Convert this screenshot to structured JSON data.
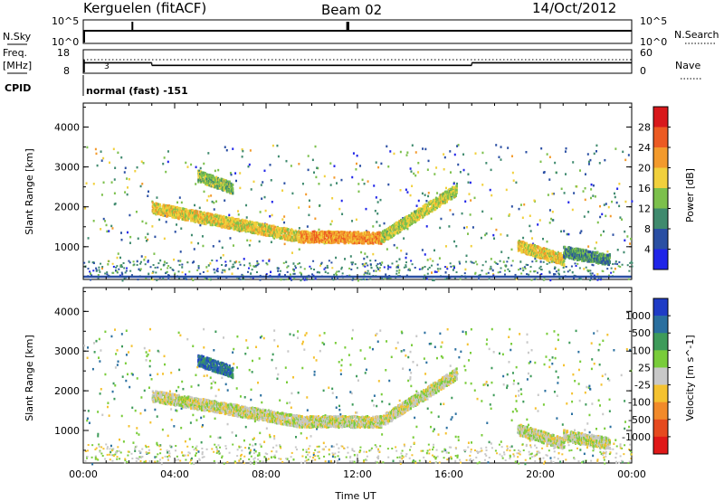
{
  "header": {
    "station": "Kerguelen (fitACF)",
    "beam": "Beam 02",
    "date": "14/Oct/2012"
  },
  "strips": {
    "nsky_label": "N.Sky",
    "nsearch_label": "N.Search",
    "nsky_ticks": [
      "10^5",
      "10^0"
    ],
    "nsearch_ticks": [
      "10^5",
      "10^0"
    ],
    "freq_label_1": "Freq.",
    "freq_label_2": "[MHz]",
    "freq_ticks": [
      "18",
      "8"
    ],
    "nave_label": "Nave",
    "nave_ticks": [
      "60",
      "0"
    ],
    "nave_marker": "3",
    "cpid_label": "CPID",
    "cpid_value": "normal (fast) -151",
    "nsky_spikes_hours": [
      2.15,
      11.55,
      11.6
    ],
    "freq_segments": [
      {
        "start": 0.0,
        "end": 3.0,
        "value": 12.5
      },
      {
        "start": 3.0,
        "end": 17.0,
        "value": 11.0
      },
      {
        "start": 17.0,
        "end": 24.0,
        "value": 12.5
      }
    ]
  },
  "chart_data": [
    {
      "type": "heatmap",
      "name": "power-panel",
      "ylabel": "Slant Range [km]",
      "xlabel": "",
      "x_ticks": [
        "00:00",
        "04:00",
        "08:00",
        "12:00",
        "16:00",
        "20:00",
        "00:00"
      ],
      "xlim": [
        0,
        24
      ],
      "ylim": [
        180,
        4600
      ],
      "y_ticks": [
        1000,
        2000,
        3000,
        4000
      ],
      "colorbar_label": "Power [dB]",
      "colorbar_ticks": [
        "4",
        "8",
        "12",
        "16",
        "20",
        "24",
        "28"
      ],
      "colorbar_colors": [
        "#1f24e8",
        "#2a4fa3",
        "#3f8a6e",
        "#7cc04c",
        "#f1d03c",
        "#f39a2c",
        "#ec5a22",
        "#d8181b"
      ],
      "echo_bands": [
        {
          "start": 3.0,
          "end": 9.5,
          "range_start": 2000,
          "range_end": 1280,
          "value": 18
        },
        {
          "start": 9.5,
          "end": 13.0,
          "range_start": 1280,
          "range_end": 1250,
          "value": 22
        },
        {
          "start": 13.0,
          "end": 16.3,
          "range_start": 1250,
          "range_end": 2450,
          "value": 16
        },
        {
          "start": 5.0,
          "end": 6.5,
          "range_start": 2800,
          "range_end": 2500,
          "value": 14
        },
        {
          "start": 19.0,
          "end": 21.0,
          "range_start": 1050,
          "range_end": 700,
          "value": 18
        },
        {
          "start": 21.0,
          "end": 23.0,
          "range_start": 900,
          "range_end": 700,
          "value": 10
        }
      ]
    },
    {
      "type": "heatmap",
      "name": "velocity-panel",
      "ylabel": "Slant Range [km]",
      "xlabel": "Time UT",
      "x_ticks": [
        "00:00",
        "04:00",
        "08:00",
        "12:00",
        "16:00",
        "20:00",
        "00:00"
      ],
      "xlim": [
        0,
        24
      ],
      "ylim": [
        180,
        4600
      ],
      "y_ticks": [
        1000,
        2000,
        3000,
        4000
      ],
      "colorbar_label": "Velocity [m s^-1]",
      "colorbar_ticks": [
        "1000",
        "500",
        "100",
        "25",
        "-25",
        "-100",
        "-500",
        "-1000"
      ],
      "colorbar_colors": [
        "#1f3cc6",
        "#2a6f9f",
        "#3e9b5a",
        "#79cc3a",
        "#c8c8c8",
        "#f4c230",
        "#f28a2a",
        "#e64a1f",
        "#e01818"
      ],
      "echo_bands": [
        {
          "start": 3.0,
          "end": 9.5,
          "range_start": 1900,
          "range_end": 1250,
          "value": 0
        },
        {
          "start": 9.5,
          "end": 13.0,
          "range_start": 1250,
          "range_end": 1250,
          "value": 0
        },
        {
          "start": 13.0,
          "end": 16.3,
          "range_start": 1250,
          "range_end": 2450,
          "value": 0
        },
        {
          "start": 5.0,
          "end": 6.5,
          "range_start": 2800,
          "range_end": 2500,
          "value": 500
        },
        {
          "start": 19.0,
          "end": 21.0,
          "range_start": 1050,
          "range_end": 700,
          "value": 0
        },
        {
          "start": 21.0,
          "end": 23.0,
          "range_start": 900,
          "range_end": 700,
          "value": 0
        }
      ]
    }
  ]
}
